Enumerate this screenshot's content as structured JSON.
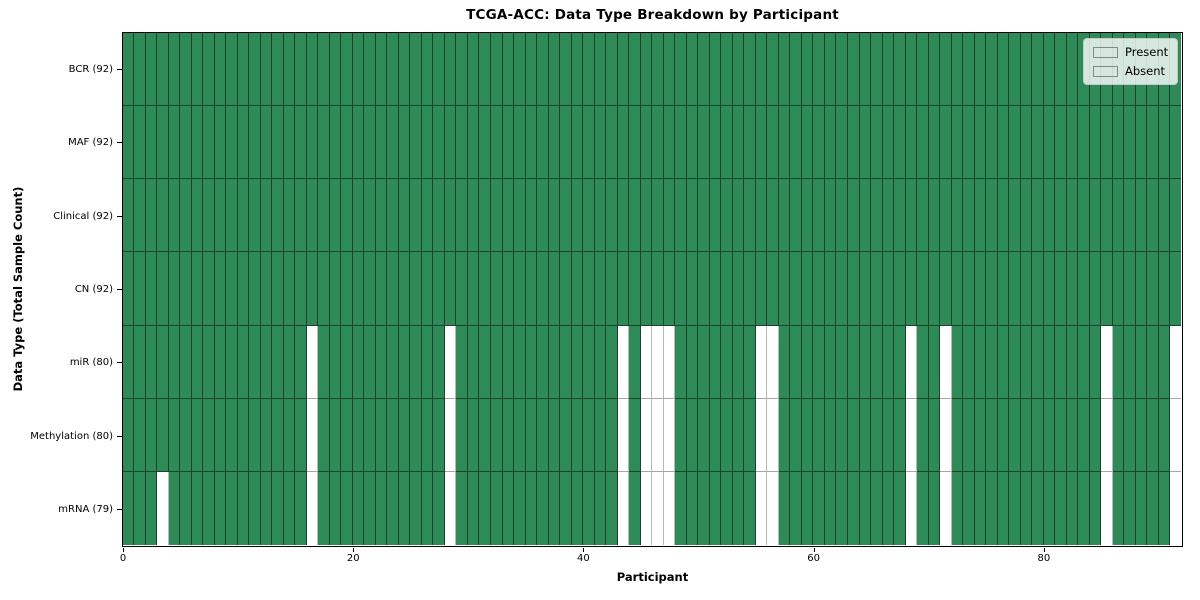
{
  "chart_data": {
    "type": "heatmap",
    "title": "TCGA-ACC: Data Type Breakdown by Participant",
    "xlabel": "Participant",
    "ylabel": "Data Type (Total Sample Count)",
    "x_ticks": [
      0,
      20,
      40,
      60,
      80
    ],
    "x_range": [
      0,
      92
    ],
    "n_columns": 92,
    "grid": true,
    "colors": {
      "present": "#2e8b57",
      "absent": "#ffffff",
      "cell_edge": "rgba(0,0,0,0.5)",
      "spine": "#000000"
    },
    "legend": {
      "position": "upper right",
      "items": [
        {
          "label": "Present",
          "color": "#2e8b57"
        },
        {
          "label": "Absent",
          "color": "#ffffff"
        }
      ]
    },
    "rows": [
      {
        "label": "BCR (92)",
        "present_count": 92,
        "absent_columns": []
      },
      {
        "label": "MAF (92)",
        "present_count": 92,
        "absent_columns": []
      },
      {
        "label": "Clinical (92)",
        "present_count": 92,
        "absent_columns": []
      },
      {
        "label": "CN (92)",
        "present_count": 92,
        "absent_columns": []
      },
      {
        "label": "miR (80)",
        "present_count": 80,
        "absent_columns": [
          16,
          28,
          43,
          45,
          46,
          47,
          55,
          56,
          68,
          71,
          85,
          91
        ]
      },
      {
        "label": "Methylation (80)",
        "present_count": 80,
        "absent_columns": [
          16,
          28,
          43,
          45,
          46,
          47,
          55,
          56,
          68,
          71,
          85,
          91
        ]
      },
      {
        "label": "mRNA (79)",
        "present_count": 79,
        "absent_columns": [
          3,
          16,
          28,
          43,
          45,
          46,
          47,
          55,
          56,
          68,
          71,
          85,
          91
        ]
      }
    ]
  }
}
